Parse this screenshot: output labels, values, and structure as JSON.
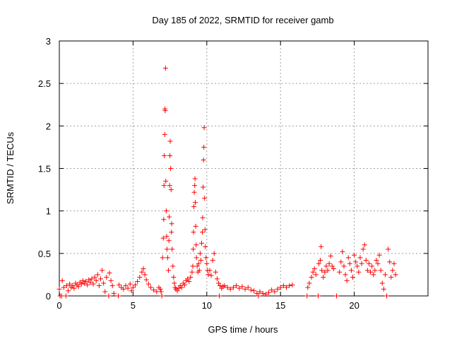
{
  "chart_data": {
    "type": "scatter",
    "title": "Day 185 of 2022, SRMTID for receiver gamb",
    "xlabel": "GPS time / hours",
    "ylabel": "SRMTID / TECUs",
    "xlim": [
      0,
      25
    ],
    "ylim": [
      0,
      3
    ],
    "xticks": [
      0,
      5,
      10,
      15,
      20
    ],
    "yticks": [
      0,
      0.5,
      1,
      1.5,
      2,
      2.5,
      3
    ],
    "xtick_labels": [
      "0",
      "5",
      "10",
      "15",
      "20"
    ],
    "ytick_labels": [
      "0",
      "0.5",
      "1",
      "1.5",
      "2",
      "2.5",
      "3"
    ],
    "grid": true,
    "marker": "+",
    "color": "#ff0000",
    "series": [
      {
        "name": "SRMTID",
        "points": [
          [
            0.0,
            0.08
          ],
          [
            0.05,
            0.0
          ],
          [
            0.15,
            0.0
          ],
          [
            0.2,
            0.18
          ],
          [
            0.3,
            0.1
          ],
          [
            0.45,
            0.0
          ],
          [
            0.5,
            0.12
          ],
          [
            0.6,
            0.06
          ],
          [
            0.7,
            0.14
          ],
          [
            0.8,
            0.1
          ],
          [
            0.9,
            0.12
          ],
          [
            1.0,
            0.09
          ],
          [
            1.1,
            0.15
          ],
          [
            1.2,
            0.13
          ],
          [
            1.3,
            0.11
          ],
          [
            1.4,
            0.16
          ],
          [
            1.5,
            0.14
          ],
          [
            1.6,
            0.18
          ],
          [
            1.7,
            0.15
          ],
          [
            1.8,
            0.17
          ],
          [
            1.9,
            0.13
          ],
          [
            2.0,
            0.19
          ],
          [
            2.1,
            0.16
          ],
          [
            2.2,
            0.2
          ],
          [
            2.3,
            0.14
          ],
          [
            2.4,
            0.22
          ],
          [
            2.5,
            0.18
          ],
          [
            2.6,
            0.25
          ],
          [
            2.7,
            0.12
          ],
          [
            2.8,
            0.2
          ],
          [
            2.9,
            0.3
          ],
          [
            3.0,
            0.15
          ],
          [
            3.1,
            0.05
          ],
          [
            3.2,
            0.22
          ],
          [
            3.35,
            0.0
          ],
          [
            3.4,
            0.27
          ],
          [
            3.5,
            0.18
          ],
          [
            3.6,
            0.12
          ],
          [
            3.7,
            0.03
          ],
          [
            4.0,
            0.0
          ],
          [
            4.05,
            0.13
          ],
          [
            4.2,
            0.1
          ],
          [
            4.35,
            0.08
          ],
          [
            4.5,
            0.12
          ],
          [
            4.65,
            0.09
          ],
          [
            4.8,
            0.14
          ],
          [
            4.9,
            0.06
          ],
          [
            5.0,
            0.1
          ],
          [
            5.15,
            0.13
          ],
          [
            5.3,
            0.17
          ],
          [
            5.45,
            0.22
          ],
          [
            5.6,
            0.28
          ],
          [
            5.7,
            0.32
          ],
          [
            5.8,
            0.25
          ],
          [
            5.9,
            0.19
          ],
          [
            6.05,
            0.14
          ],
          [
            6.2,
            0.1
          ],
          [
            6.4,
            0.07
          ],
          [
            6.6,
            0.05
          ],
          [
            6.75,
            0.1
          ],
          [
            6.85,
            0.08
          ],
          [
            6.9,
            0.05
          ],
          [
            6.95,
            0.0
          ],
          [
            7.0,
            0.45
          ],
          [
            7.05,
            0.68
          ],
          [
            7.08,
            0.9
          ],
          [
            7.1,
            1.3
          ],
          [
            7.12,
            1.65
          ],
          [
            7.15,
            1.9
          ],
          [
            7.16,
            2.2
          ],
          [
            7.18,
            2.18
          ],
          [
            7.2,
            2.68
          ],
          [
            7.22,
            1.35
          ],
          [
            7.25,
            1.0
          ],
          [
            7.28,
            0.7
          ],
          [
            7.3,
            0.55
          ],
          [
            7.35,
            0.45
          ],
          [
            7.4,
            0.3
          ],
          [
            7.43,
            0.65
          ],
          [
            7.45,
            0.93
          ],
          [
            7.48,
            1.3
          ],
          [
            7.5,
            1.65
          ],
          [
            7.52,
            1.82
          ],
          [
            7.55,
            1.5
          ],
          [
            7.58,
            1.25
          ],
          [
            7.6,
            0.75
          ],
          [
            7.62,
            0.85
          ],
          [
            7.65,
            0.55
          ],
          [
            7.7,
            0.35
          ],
          [
            7.75,
            0.22
          ],
          [
            7.8,
            0.15
          ],
          [
            7.85,
            0.1
          ],
          [
            7.9,
            0.08
          ],
          [
            8.0,
            0.06
          ],
          [
            8.1,
            0.09
          ],
          [
            8.2,
            0.12
          ],
          [
            8.3,
            0.1
          ],
          [
            8.4,
            0.15
          ],
          [
            8.5,
            0.13
          ],
          [
            8.6,
            0.18
          ],
          [
            8.7,
            0.2
          ],
          [
            8.8,
            0.17
          ],
          [
            8.9,
            0.22
          ],
          [
            9.0,
            0.28
          ],
          [
            9.05,
            0.35
          ],
          [
            9.08,
            0.55
          ],
          [
            9.1,
            0.75
          ],
          [
            9.12,
            1.05
          ],
          [
            9.15,
            1.22
          ],
          [
            9.18,
            1.3
          ],
          [
            9.2,
            1.38
          ],
          [
            9.22,
            1.1
          ],
          [
            9.25,
            0.82
          ],
          [
            9.28,
            0.6
          ],
          [
            9.3,
            0.45
          ],
          [
            9.35,
            0.35
          ],
          [
            9.4,
            0.28
          ],
          [
            9.45,
            0.38
          ],
          [
            9.5,
            0.3
          ],
          [
            9.55,
            0.5
          ],
          [
            9.6,
            0.42
          ],
          [
            9.65,
            0.62
          ],
          [
            9.7,
            0.75
          ],
          [
            9.72,
            0.92
          ],
          [
            9.75,
            1.28
          ],
          [
            9.78,
            1.6
          ],
          [
            9.8,
            1.75
          ],
          [
            9.82,
            1.98
          ],
          [
            9.85,
            1.15
          ],
          [
            9.88,
            0.78
          ],
          [
            9.9,
            0.58
          ],
          [
            9.95,
            0.45
          ],
          [
            10.0,
            0.38
          ],
          [
            10.05,
            0.3
          ],
          [
            10.1,
            0.25
          ],
          [
            10.2,
            0.3
          ],
          [
            10.3,
            0.24
          ],
          [
            10.4,
            0.42
          ],
          [
            10.5,
            0.5
          ],
          [
            10.6,
            0.28
          ],
          [
            10.7,
            0.2
          ],
          [
            10.8,
            0.15
          ],
          [
            10.85,
            0.0
          ],
          [
            10.9,
            0.12
          ],
          [
            11.0,
            0.09
          ],
          [
            11.1,
            0.11
          ],
          [
            11.2,
            0.12
          ],
          [
            11.4,
            0.1
          ],
          [
            11.6,
            0.08
          ],
          [
            11.8,
            0.1
          ],
          [
            12.0,
            0.12
          ],
          [
            12.2,
            0.09
          ],
          [
            12.4,
            0.11
          ],
          [
            12.6,
            0.08
          ],
          [
            12.8,
            0.1
          ],
          [
            13.0,
            0.07
          ],
          [
            13.2,
            0.06
          ],
          [
            13.4,
            0.03
          ],
          [
            13.5,
            0.0
          ],
          [
            13.6,
            0.05
          ],
          [
            13.8,
            0.03
          ],
          [
            14.0,
            0.02
          ],
          [
            14.2,
            0.04
          ],
          [
            14.4,
            0.07
          ],
          [
            14.6,
            0.05
          ],
          [
            14.8,
            0.08
          ],
          [
            15.0,
            0.1
          ],
          [
            15.2,
            0.12
          ],
          [
            15.4,
            0.1
          ],
          [
            15.6,
            0.12
          ],
          [
            15.8,
            0.13
          ],
          [
            16.8,
            0.0
          ],
          [
            16.85,
            0.1
          ],
          [
            16.95,
            0.15
          ],
          [
            17.1,
            0.22
          ],
          [
            17.2,
            0.28
          ],
          [
            17.3,
            0.32
          ],
          [
            17.4,
            0.25
          ],
          [
            17.55,
            0.0
          ],
          [
            17.6,
            0.38
          ],
          [
            17.7,
            0.42
          ],
          [
            17.75,
            0.58
          ],
          [
            17.8,
            0.3
          ],
          [
            17.9,
            0.22
          ],
          [
            18.0,
            0.28
          ],
          [
            18.1,
            0.35
          ],
          [
            18.2,
            0.3
          ],
          [
            18.3,
            0.38
          ],
          [
            18.4,
            0.47
          ],
          [
            18.5,
            0.35
          ],
          [
            18.6,
            0.32
          ],
          [
            18.8,
            0.0
          ],
          [
            19.0,
            0.28
          ],
          [
            19.1,
            0.4
          ],
          [
            19.2,
            0.52
          ],
          [
            19.3,
            0.35
          ],
          [
            19.4,
            0.25
          ],
          [
            19.5,
            0.18
          ],
          [
            19.6,
            0.45
          ],
          [
            19.7,
            0.38
          ],
          [
            19.8,
            0.3
          ],
          [
            19.9,
            0.22
          ],
          [
            20.0,
            0.48
          ],
          [
            20.1,
            0.4
          ],
          [
            20.2,
            0.35
          ],
          [
            20.3,
            0.28
          ],
          [
            20.4,
            0.45
          ],
          [
            20.5,
            0.38
          ],
          [
            20.6,
            0.55
          ],
          [
            20.7,
            0.6
          ],
          [
            20.8,
            0.42
          ],
          [
            20.9,
            0.3
          ],
          [
            21.0,
            0.38
          ],
          [
            21.1,
            0.28
          ],
          [
            21.2,
            0.35
          ],
          [
            21.3,
            0.25
          ],
          [
            21.4,
            0.3
          ],
          [
            21.5,
            0.42
          ],
          [
            21.6,
            0.38
          ],
          [
            21.7,
            0.48
          ],
          [
            21.8,
            0.3
          ],
          [
            21.9,
            0.15
          ],
          [
            22.0,
            0.08
          ],
          [
            22.1,
            0.25
          ],
          [
            22.2,
            0.0
          ],
          [
            22.3,
            0.55
          ],
          [
            22.4,
            0.4
          ],
          [
            22.5,
            0.22
          ],
          [
            22.6,
            0.3
          ],
          [
            22.7,
            0.38
          ],
          [
            22.8,
            0.25
          ]
        ]
      }
    ]
  }
}
